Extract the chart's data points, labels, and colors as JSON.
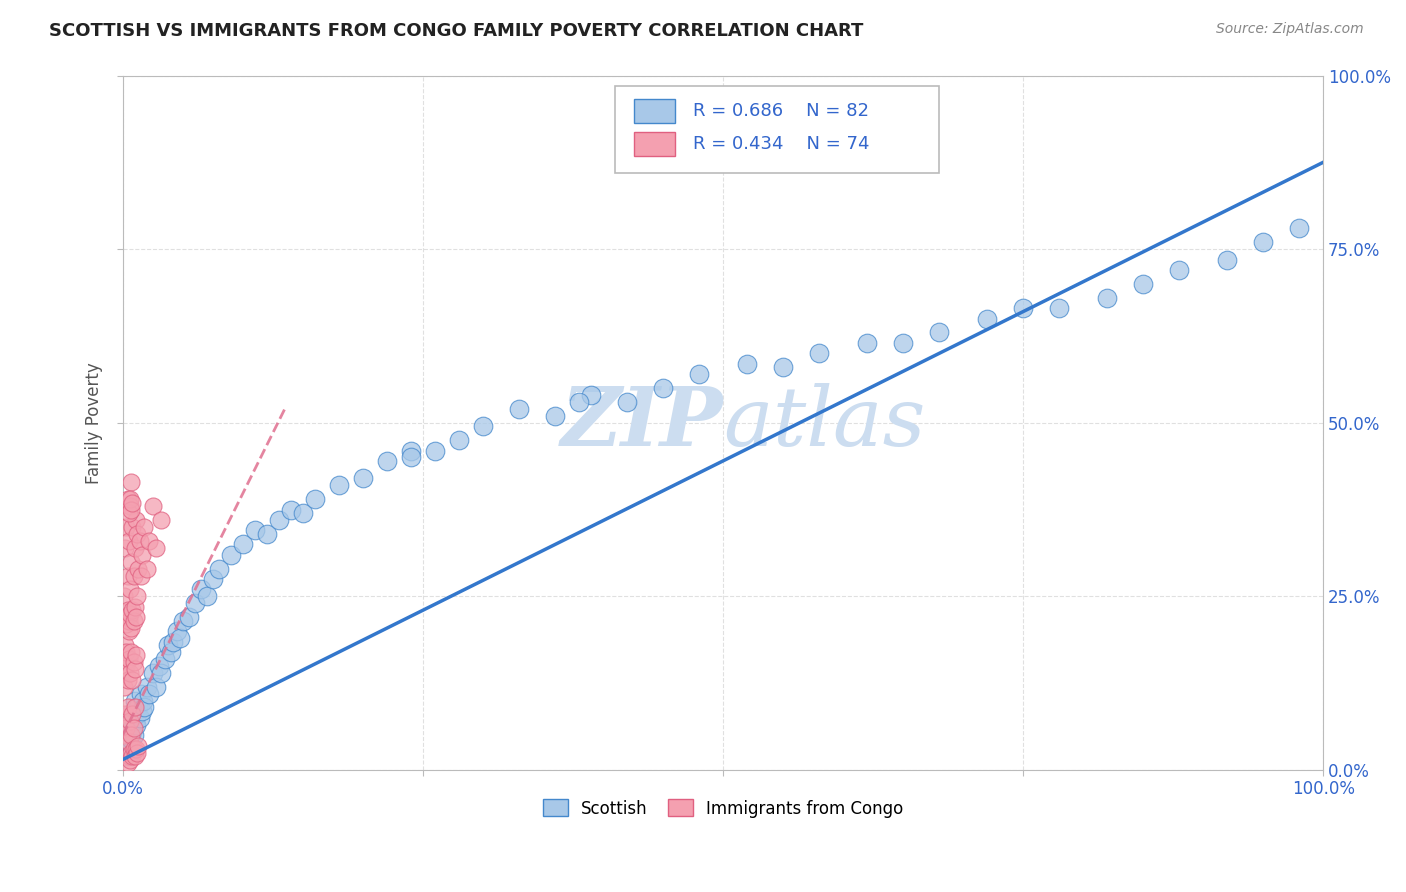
{
  "title": "SCOTTISH VS IMMIGRANTS FROM CONGO FAMILY POVERTY CORRELATION CHART",
  "source_text": "Source: ZipAtlas.com",
  "ylabel": "Family Poverty",
  "legend_label1": "Scottish",
  "legend_label2": "Immigrants from Congo",
  "R1": 0.686,
  "N1": 82,
  "R2": 0.434,
  "N2": 74,
  "color_blue": "#a8c8e8",
  "color_blue_dark": "#4488cc",
  "color_blue_line": "#3377cc",
  "color_pink": "#f4a0b0",
  "color_pink_dark": "#e06080",
  "color_pink_line": "#e07090",
  "color_grid": "#cccccc",
  "watermark_color": "#ccddf0",
  "blue_x": [
    0.002,
    0.003,
    0.003,
    0.004,
    0.004,
    0.005,
    0.005,
    0.006,
    0.006,
    0.007,
    0.007,
    0.008,
    0.008,
    0.009,
    0.009,
    0.01,
    0.01,
    0.011,
    0.012,
    0.013,
    0.014,
    0.015,
    0.016,
    0.017,
    0.018,
    0.02,
    0.022,
    0.025,
    0.028,
    0.03,
    0.032,
    0.035,
    0.038,
    0.04,
    0.042,
    0.045,
    0.048,
    0.05,
    0.055,
    0.06,
    0.065,
    0.07,
    0.075,
    0.08,
    0.09,
    0.1,
    0.11,
    0.12,
    0.13,
    0.14,
    0.15,
    0.16,
    0.18,
    0.2,
    0.22,
    0.24,
    0.26,
    0.28,
    0.3,
    0.33,
    0.36,
    0.39,
    0.42,
    0.45,
    0.48,
    0.52,
    0.55,
    0.58,
    0.62,
    0.65,
    0.68,
    0.72,
    0.75,
    0.78,
    0.82,
    0.85,
    0.88,
    0.92,
    0.95,
    0.98,
    0.24,
    0.38
  ],
  "blue_y": [
    0.03,
    0.05,
    0.02,
    0.06,
    0.025,
    0.04,
    0.07,
    0.05,
    0.08,
    0.06,
    0.045,
    0.07,
    0.055,
    0.08,
    0.05,
    0.07,
    0.1,
    0.065,
    0.08,
    0.09,
    0.075,
    0.11,
    0.085,
    0.1,
    0.09,
    0.12,
    0.11,
    0.14,
    0.12,
    0.15,
    0.14,
    0.16,
    0.18,
    0.17,
    0.185,
    0.2,
    0.19,
    0.215,
    0.22,
    0.24,
    0.26,
    0.25,
    0.275,
    0.29,
    0.31,
    0.325,
    0.345,
    0.34,
    0.36,
    0.375,
    0.37,
    0.39,
    0.41,
    0.42,
    0.445,
    0.46,
    0.46,
    0.475,
    0.495,
    0.52,
    0.51,
    0.54,
    0.53,
    0.55,
    0.57,
    0.585,
    0.58,
    0.6,
    0.615,
    0.615,
    0.63,
    0.65,
    0.665,
    0.665,
    0.68,
    0.7,
    0.72,
    0.735,
    0.76,
    0.78,
    0.45,
    0.53
  ],
  "pink_x": [
    0.001,
    0.001,
    0.002,
    0.002,
    0.003,
    0.003,
    0.003,
    0.004,
    0.004,
    0.005,
    0.005,
    0.006,
    0.006,
    0.007,
    0.007,
    0.008,
    0.009,
    0.01,
    0.011,
    0.012,
    0.013,
    0.014,
    0.015,
    0.016,
    0.018,
    0.02,
    0.022,
    0.025,
    0.028,
    0.032,
    0.001,
    0.002,
    0.003,
    0.004,
    0.005,
    0.006,
    0.007,
    0.008,
    0.009,
    0.01,
    0.002,
    0.003,
    0.004,
    0.005,
    0.006,
    0.007,
    0.008,
    0.009,
    0.01,
    0.011,
    0.003,
    0.004,
    0.005,
    0.006,
    0.007,
    0.008,
    0.009,
    0.01,
    0.011,
    0.012,
    0.004,
    0.005,
    0.006,
    0.007,
    0.008,
    0.009,
    0.01,
    0.011,
    0.012,
    0.013,
    0.005,
    0.006,
    0.007,
    0.008
  ],
  "pink_y": [
    0.12,
    0.25,
    0.18,
    0.32,
    0.15,
    0.22,
    0.35,
    0.28,
    0.39,
    0.2,
    0.33,
    0.26,
    0.38,
    0.3,
    0.415,
    0.35,
    0.28,
    0.32,
    0.36,
    0.34,
    0.29,
    0.33,
    0.28,
    0.31,
    0.35,
    0.29,
    0.33,
    0.38,
    0.32,
    0.36,
    0.05,
    0.08,
    0.06,
    0.09,
    0.04,
    0.07,
    0.05,
    0.08,
    0.06,
    0.09,
    0.15,
    0.17,
    0.13,
    0.16,
    0.14,
    0.17,
    0.13,
    0.155,
    0.145,
    0.165,
    0.21,
    0.23,
    0.215,
    0.225,
    0.205,
    0.23,
    0.215,
    0.235,
    0.22,
    0.25,
    0.01,
    0.02,
    0.015,
    0.025,
    0.02,
    0.03,
    0.02,
    0.03,
    0.025,
    0.035,
    0.37,
    0.39,
    0.375,
    0.385
  ]
}
